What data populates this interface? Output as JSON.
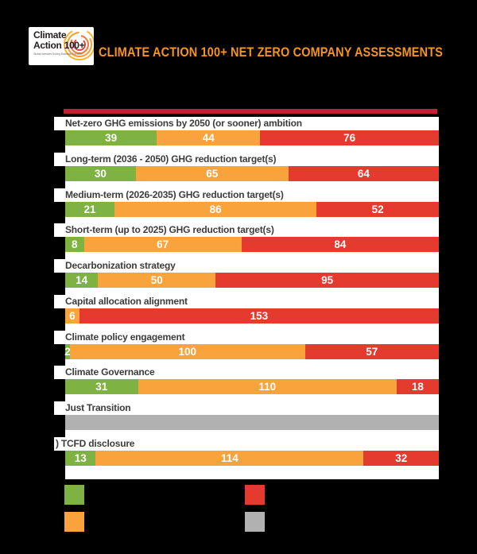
{
  "header": {
    "logo": {
      "line1": "Climate",
      "line2": "Action 100+",
      "tagline": "Global Investors Driving Business Transition"
    },
    "title": "CLIMATE ACTION 100+ NET ZERO COMPANY ASSESSMENTS"
  },
  "colors": {
    "green": "#7eb343",
    "orange": "#f9a33c",
    "red": "#e53a2e",
    "gray": "#b1b1b1",
    "crimson_rule": "#c42033",
    "title_orange": "#f7941e",
    "label_text": "#3c3c3c",
    "panel_background": "#ffffff",
    "page_background": "#000000"
  },
  "chart_data": {
    "type": "bar",
    "orientation": "horizontal",
    "stacked": true,
    "total_per_row": 159,
    "grid": false,
    "legend_position": "bottom",
    "categories": [
      "Net-zero GHG emissions by 2050 (or sooner) ambition",
      "Long-term (2036 - 2050) GHG reduction target(s)",
      "Medium-term (2026-2035) GHG reduction target(s)",
      "Short-term (up to 2025) GHG reduction target(s)",
      "Decarbonization strategy",
      "Capital allocation alignment",
      "Climate policy engagement",
      "Climate Governance",
      "Just Transition",
      ") TCFD disclosure"
    ],
    "series": [
      {
        "name": "green",
        "values": [
          39,
          30,
          21,
          8,
          14,
          0,
          2,
          31,
          0,
          13
        ]
      },
      {
        "name": "orange",
        "values": [
          44,
          65,
          86,
          67,
          50,
          6,
          100,
          110,
          0,
          114
        ]
      },
      {
        "name": "red",
        "values": [
          76,
          64,
          52,
          84,
          95,
          153,
          57,
          18,
          0,
          32
        ]
      },
      {
        "name": "gray",
        "values": [
          0,
          0,
          0,
          0,
          0,
          0,
          0,
          0,
          159,
          0
        ]
      }
    ],
    "rows": [
      {
        "label": "Net-zero GHG emissions by 2050 (or sooner) ambition",
        "segments": [
          {
            "key": "green",
            "value": 39,
            "text": "39"
          },
          {
            "key": "orange",
            "value": 44,
            "text": "44"
          },
          {
            "key": "red",
            "value": 76,
            "text": "76"
          }
        ]
      },
      {
        "label": "Long-term (2036 - 2050) GHG reduction target(s)",
        "segments": [
          {
            "key": "green",
            "value": 30,
            "text": "30"
          },
          {
            "key": "orange",
            "value": 65,
            "text": "65"
          },
          {
            "key": "red",
            "value": 64,
            "text": "64"
          }
        ]
      },
      {
        "label": "Medium-term (2026-2035) GHG reduction target(s)",
        "segments": [
          {
            "key": "green",
            "value": 21,
            "text": "21"
          },
          {
            "key": "orange",
            "value": 86,
            "text": "86"
          },
          {
            "key": "red",
            "value": 52,
            "text": "52"
          }
        ]
      },
      {
        "label": "Short-term (up to 2025) GHG reduction target(s)",
        "segments": [
          {
            "key": "green",
            "value": 8,
            "text": "8"
          },
          {
            "key": "orange",
            "value": 67,
            "text": "67"
          },
          {
            "key": "red",
            "value": 84,
            "text": "84"
          }
        ]
      },
      {
        "label": "Decarbonization strategy",
        "segments": [
          {
            "key": "green",
            "value": 14,
            "text": "14"
          },
          {
            "key": "orange",
            "value": 50,
            "text": "50"
          },
          {
            "key": "red",
            "value": 95,
            "text": "95"
          }
        ]
      },
      {
        "label": "Capital allocation alignment",
        "segments": [
          {
            "key": "orange",
            "value": 6,
            "text": "6"
          },
          {
            "key": "red",
            "value": 153,
            "text": "153"
          }
        ]
      },
      {
        "label": "Climate policy engagement",
        "segments": [
          {
            "key": "green",
            "value": 2,
            "text": "2"
          },
          {
            "key": "orange",
            "value": 100,
            "text": "100"
          },
          {
            "key": "red",
            "value": 57,
            "text": "57"
          }
        ]
      },
      {
        "label": "Climate Governance",
        "segments": [
          {
            "key": "green",
            "value": 31,
            "text": "31"
          },
          {
            "key": "orange",
            "value": 110,
            "text": "110"
          },
          {
            "key": "red",
            "value": 18,
            "text": "18"
          }
        ]
      },
      {
        "label": "Just Transition",
        "segments": [
          {
            "key": "gray",
            "value": 159,
            "text": ""
          }
        ]
      },
      {
        "label": ") TCFD disclosure",
        "segments": [
          {
            "key": "green",
            "value": 13,
            "text": "13"
          },
          {
            "key": "orange",
            "value": 114,
            "text": "114"
          },
          {
            "key": "red",
            "value": 32,
            "text": "32"
          }
        ]
      }
    ]
  },
  "legend": {
    "swatches": [
      {
        "name": "green",
        "color": "#7eb343"
      },
      {
        "name": "red",
        "color": "#e53a2e"
      },
      {
        "name": "orange",
        "color": "#f9a33c"
      },
      {
        "name": "gray",
        "color": "#b1b1b1"
      }
    ]
  }
}
